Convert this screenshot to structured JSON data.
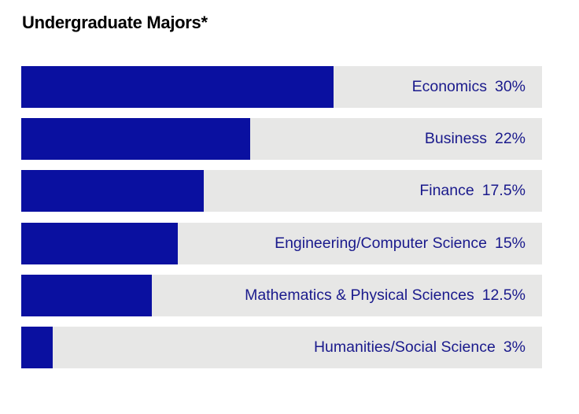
{
  "title": "Undergraduate Majors*",
  "colors": {
    "bar_fill": "#0a10a0",
    "bar_track": "#e7e7e6",
    "label_text": "#1a1a8c",
    "title_text": "#000000"
  },
  "chart_data": {
    "type": "bar",
    "orientation": "horizontal",
    "title": "Undergraduate Majors*",
    "categories": [
      "Economics",
      "Business",
      "Finance",
      "Engineering/Computer Science",
      "Mathematics & Physical Sciences",
      "Humanities/Social Science"
    ],
    "values": [
      30,
      22,
      17.5,
      15,
      12.5,
      3
    ],
    "value_labels": [
      "30%",
      "22%",
      "17.5%",
      "15%",
      "12.5%",
      "3%"
    ],
    "xlim": [
      0,
      50
    ],
    "unit": "%",
    "grid": false,
    "legend": "none"
  }
}
